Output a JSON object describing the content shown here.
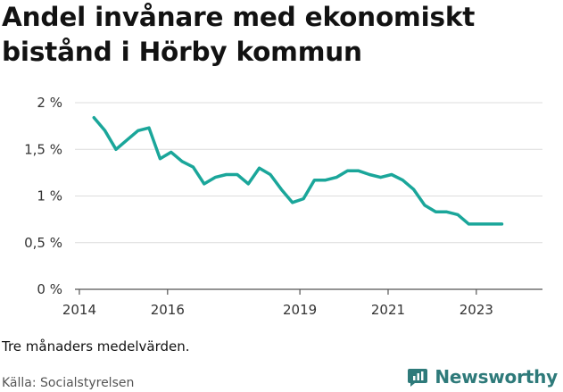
{
  "title_lines": [
    "Andel invånare med ekonomiskt",
    "bistånd i Hörby kommun"
  ],
  "note": "Tre månaders medelvärden.",
  "source": "Källa: Socialstyrelsen",
  "brand": {
    "name": "Newsworthy",
    "icon": "newsworthy-logo-icon",
    "color": "#2e7a7a"
  },
  "chart_data": {
    "type": "line",
    "title": "Andel invånare med ekonomiskt bistånd i Hörby kommun",
    "xlabel": "",
    "ylabel": "",
    "ylim": [
      0,
      2
    ],
    "xlim": [
      2013.9,
      2024.5
    ],
    "grid": true,
    "y_ticks": [
      {
        "value": 0,
        "label": "0 %"
      },
      {
        "value": 0.5,
        "label": "0,5 %"
      },
      {
        "value": 1,
        "label": "1 %"
      },
      {
        "value": 1.5,
        "label": "1,5 %"
      },
      {
        "value": 2,
        "label": "2 %"
      }
    ],
    "x_ticks": [
      {
        "value": 2014,
        "label": "2014"
      },
      {
        "value": 2016,
        "label": "2016"
      },
      {
        "value": 2019,
        "label": "2019"
      },
      {
        "value": 2021,
        "label": "2021"
      },
      {
        "value": 2023,
        "label": "2023"
      }
    ],
    "series": [
      {
        "color": "#1aa69a",
        "x": [
          2014.33,
          2014.58,
          2014.83,
          2015.08,
          2015.33,
          2015.58,
          2015.83,
          2016.08,
          2016.33,
          2016.58,
          2016.83,
          2017.08,
          2017.33,
          2017.58,
          2017.83,
          2018.08,
          2018.33,
          2018.58,
          2018.83,
          2019.08,
          2019.33,
          2019.58,
          2019.83,
          2020.08,
          2020.33,
          2020.58,
          2020.83,
          2021.08,
          2021.33,
          2021.58,
          2021.83,
          2022.08,
          2022.33,
          2022.58,
          2022.83,
          2023.08,
          2023.33,
          2023.58
        ],
        "values": [
          1.84,
          1.7,
          1.5,
          1.6,
          1.7,
          1.73,
          1.4,
          1.47,
          1.37,
          1.31,
          1.13,
          1.2,
          1.23,
          1.23,
          1.13,
          1.3,
          1.23,
          1.07,
          0.93,
          0.97,
          1.17,
          1.17,
          1.2,
          1.27,
          1.27,
          1.23,
          1.2,
          1.23,
          1.17,
          1.07,
          0.9,
          0.83,
          0.83,
          0.8,
          0.7,
          0.7,
          0.7,
          0.7
        ]
      }
    ]
  }
}
